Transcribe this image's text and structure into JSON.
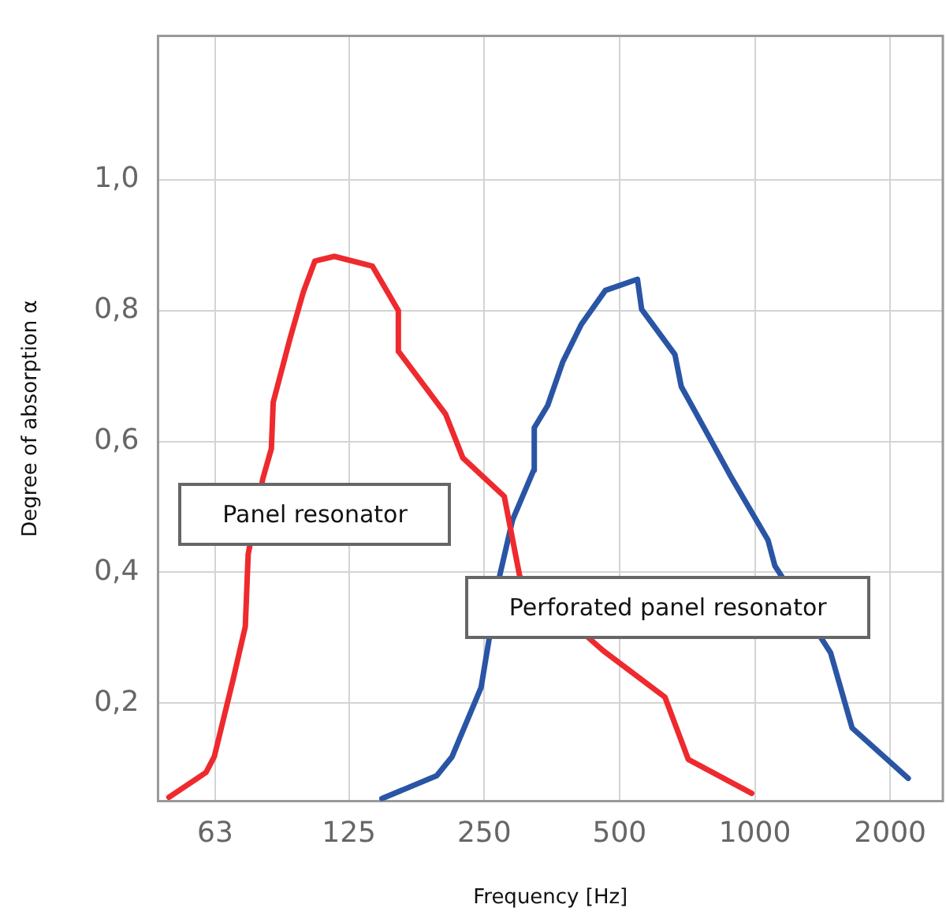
{
  "chart_data": {
    "type": "line",
    "xlabel": "Frequency [Hz]",
    "ylabel": "Degree of absorption α",
    "log": "x",
    "xlim": [
      47,
      2620
    ],
    "ylim": [
      0.05,
      1.22
    ],
    "xticks": [
      63,
      125,
      250,
      500,
      1000,
      2000
    ],
    "yticks": [
      {
        "value": 0.2,
        "label": "0,2"
      },
      {
        "value": 0.4,
        "label": "0,4"
      },
      {
        "value": 0.6,
        "label": "0,6"
      },
      {
        "value": 0.8,
        "label": "0,8"
      },
      {
        "value": 1.0,
        "label": "1,0"
      }
    ],
    "grid": true,
    "legend": false,
    "marker": "none",
    "line_style": "solid",
    "series": [
      {
        "name": "Panel resonator",
        "color": "#ee2a2e",
        "x": [
          49.7,
          60.1,
          62.7,
          69.1,
          73.5,
          74.6,
          80.4,
          84.0,
          84.8,
          92.4,
          98.9,
          105,
          116,
          141,
          161,
          161,
          205,
          224,
          277,
          300,
          460,
          631,
          711,
          984
        ],
        "values": [
          0.056,
          0.094,
          0.118,
          0.237,
          0.317,
          0.428,
          0.543,
          0.589,
          0.66,
          0.757,
          0.828,
          0.876,
          0.883,
          0.868,
          0.8,
          0.738,
          0.642,
          0.575,
          0.516,
          0.393,
          0.28,
          0.209,
          0.114,
          0.062
        ]
      },
      {
        "name": "Perforated panel resonator",
        "color": "#2a55a5",
        "x": [
          148,
          196,
          212,
          246,
          270,
          289,
          322,
          323,
          346,
          374,
          411,
          465,
          548,
          560,
          664,
          686,
          778,
          880,
          1070,
          1108,
          1474,
          1646,
          2194
        ],
        "values": [
          0.054,
          0.089,
          0.118,
          0.224,
          0.392,
          0.48,
          0.556,
          0.621,
          0.655,
          0.722,
          0.779,
          0.831,
          0.848,
          0.802,
          0.733,
          0.684,
          0.616,
          0.549,
          0.449,
          0.41,
          0.277,
          0.162,
          0.085
        ]
      }
    ]
  }
}
